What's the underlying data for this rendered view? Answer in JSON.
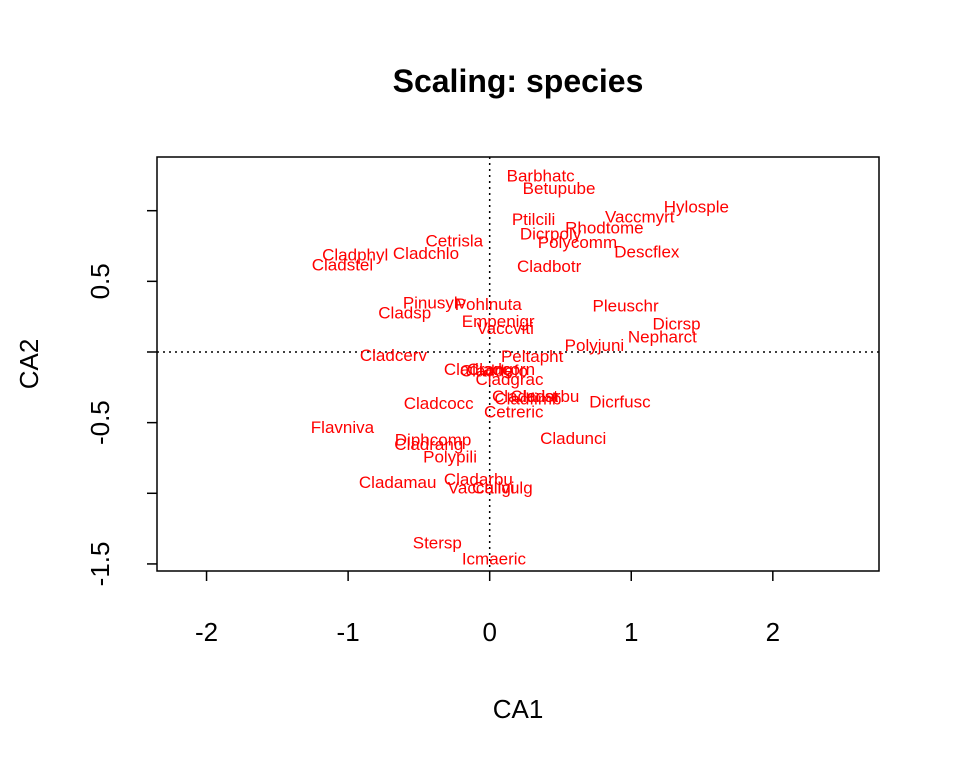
{
  "chart_data": {
    "type": "scatter",
    "title": "Scaling: species",
    "xlabel": "CA1",
    "ylabel": "CA2",
    "xlim": [
      -2.35,
      2.75
    ],
    "ylim": [
      -1.55,
      1.38
    ],
    "x_ticks": [
      -2,
      -1,
      0,
      1,
      2
    ],
    "x_tick_labels": [
      "-2",
      "-1",
      "0",
      "1",
      "2"
    ],
    "y_ticks": [
      -1.5,
      -1.0,
      -0.5,
      0.0,
      0.5,
      1.0
    ],
    "y_tick_labels": [
      "-1.5",
      "",
      "-0.5",
      "",
      "0.5",
      ""
    ],
    "reference_lines": {
      "x": 0,
      "y": 0,
      "style": "dotted"
    },
    "label_color": "#ff0000",
    "grid": false,
    "legend": "none",
    "points": [
      {
        "label": "Barbhatc",
        "x": 0.36,
        "y": 1.25
      },
      {
        "label": "Betupube",
        "x": 0.49,
        "y": 1.16
      },
      {
        "label": "Hylosple",
        "x": 1.46,
        "y": 1.03
      },
      {
        "label": "Vaccmyrt",
        "x": 1.06,
        "y": 0.96
      },
      {
        "label": "Ptilcili",
        "x": 0.31,
        "y": 0.94
      },
      {
        "label": "Rhodtome",
        "x": 0.81,
        "y": 0.88
      },
      {
        "label": "Dicrpoly",
        "x": 0.43,
        "y": 0.84
      },
      {
        "label": "Polycomm",
        "x": 0.62,
        "y": 0.78
      },
      {
        "label": "Cetrisla",
        "x": -0.25,
        "y": 0.79
      },
      {
        "label": "Descflex",
        "x": 1.11,
        "y": 0.71
      },
      {
        "label": "Cladphyl",
        "x": -0.95,
        "y": 0.69
      },
      {
        "label": "Cladchlo",
        "x": -0.45,
        "y": 0.7
      },
      {
        "label": "Cladstel",
        "x": -1.04,
        "y": 0.62
      },
      {
        "label": "Cladbotr",
        "x": 0.42,
        "y": 0.61
      },
      {
        "label": "Pinusylv",
        "x": -0.39,
        "y": 0.35
      },
      {
        "label": "Pohlnuta",
        "x": -0.01,
        "y": 0.34
      },
      {
        "label": "Pleuschr",
        "x": 0.96,
        "y": 0.33
      },
      {
        "label": "Cladsp",
        "x": -0.6,
        "y": 0.28
      },
      {
        "label": "Empenigr",
        "x": 0.06,
        "y": 0.22
      },
      {
        "label": "Dicrsp",
        "x": 1.32,
        "y": 0.2
      },
      {
        "label": "Vaccviti",
        "x": 0.11,
        "y": 0.17
      },
      {
        "label": "Nepharct",
        "x": 1.22,
        "y": 0.11
      },
      {
        "label": "Polyjuni",
        "x": 0.74,
        "y": 0.05
      },
      {
        "label": "Cladcerv",
        "x": -0.68,
        "y": -0.02
      },
      {
        "label": "Peltapht",
        "x": 0.3,
        "y": -0.03
      },
      {
        "label": "Cladrang",
        "x": -0.08,
        "y": -0.12
      },
      {
        "label": "Cladcorn",
        "x": 0.08,
        "y": -0.12
      },
      {
        "label": "Claddefo",
        "x": 0.03,
        "y": -0.13
      },
      {
        "label": "Cladgrac",
        "x": 0.14,
        "y": -0.19
      },
      {
        "label": "Cladcrist",
        "x": 0.25,
        "y": -0.31
      },
      {
        "label": "Cladfimb",
        "x": 0.27,
        "y": -0.33
      },
      {
        "label": "Cladarbu",
        "x": 0.39,
        "y": -0.31
      },
      {
        "label": "Dicrfusc",
        "x": 0.92,
        "y": -0.35
      },
      {
        "label": "Cladcocc",
        "x": -0.36,
        "y": -0.36
      },
      {
        "label": "Cetreric",
        "x": 0.17,
        "y": -0.42
      },
      {
        "label": "Flavniva",
        "x": -1.04,
        "y": -0.53
      },
      {
        "label": "Cladunci",
        "x": 0.59,
        "y": -0.61
      },
      {
        "label": "Diphcomp",
        "x": -0.4,
        "y": -0.62
      },
      {
        "label": "Cladrang",
        "x": -0.43,
        "y": -0.65
      },
      {
        "label": "Polypili",
        "x": -0.28,
        "y": -0.74
      },
      {
        "label": "Cladamau",
        "x": -0.65,
        "y": -0.92
      },
      {
        "label": "Cladarbu",
        "x": -0.08,
        "y": -0.9
      },
      {
        "label": "Vacculigi",
        "x": -0.06,
        "y": -0.96
      },
      {
        "label": "Callvulg",
        "x": 0.09,
        "y": -0.96
      },
      {
        "label": "Stersp",
        "x": -0.37,
        "y": -1.35
      },
      {
        "label": "Icmaeric",
        "x": 0.03,
        "y": -1.46
      }
    ]
  }
}
